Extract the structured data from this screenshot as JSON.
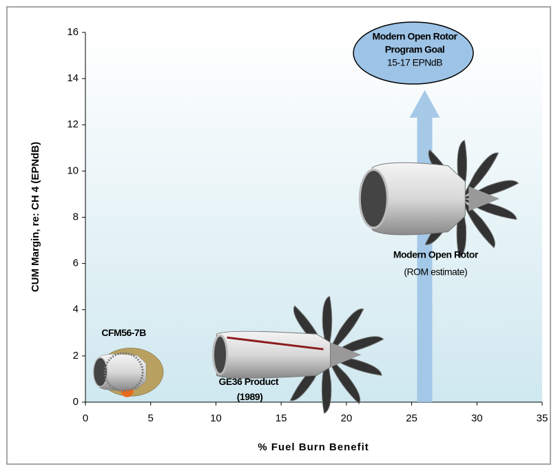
{
  "chart_data": {
    "type": "scatter",
    "xlabel": "% Fuel Burn Benefit",
    "ylabel": "CUM Margin, re: CH 4 (EPNdB)",
    "xlim": [
      0,
      35
    ],
    "xticks": [
      0,
      5,
      10,
      15,
      20,
      25,
      30,
      35
    ],
    "ylim": [
      0,
      16
    ],
    "yticks": [
      0,
      2,
      4,
      6,
      8,
      10,
      12,
      14,
      16
    ],
    "points": [
      {
        "label": [
          "CFM56-7B"
        ],
        "x": 3.2,
        "y": 1.3
      },
      {
        "label": [
          "GE36 Product",
          "(1989)"
        ],
        "x": 15.6,
        "y": 2.05
      },
      {
        "label": [
          "Modern Open Rotor",
          "(ROM estimate)"
        ],
        "x": 26.2,
        "y": 8.8
      }
    ],
    "goal": {
      "label": [
        "Modern Open Rotor",
        "Program Goal",
        "15-17 EPNdB"
      ],
      "x": 26,
      "y_start": 0,
      "y_end": 13.5,
      "color": "#9dc3e6"
    }
  }
}
